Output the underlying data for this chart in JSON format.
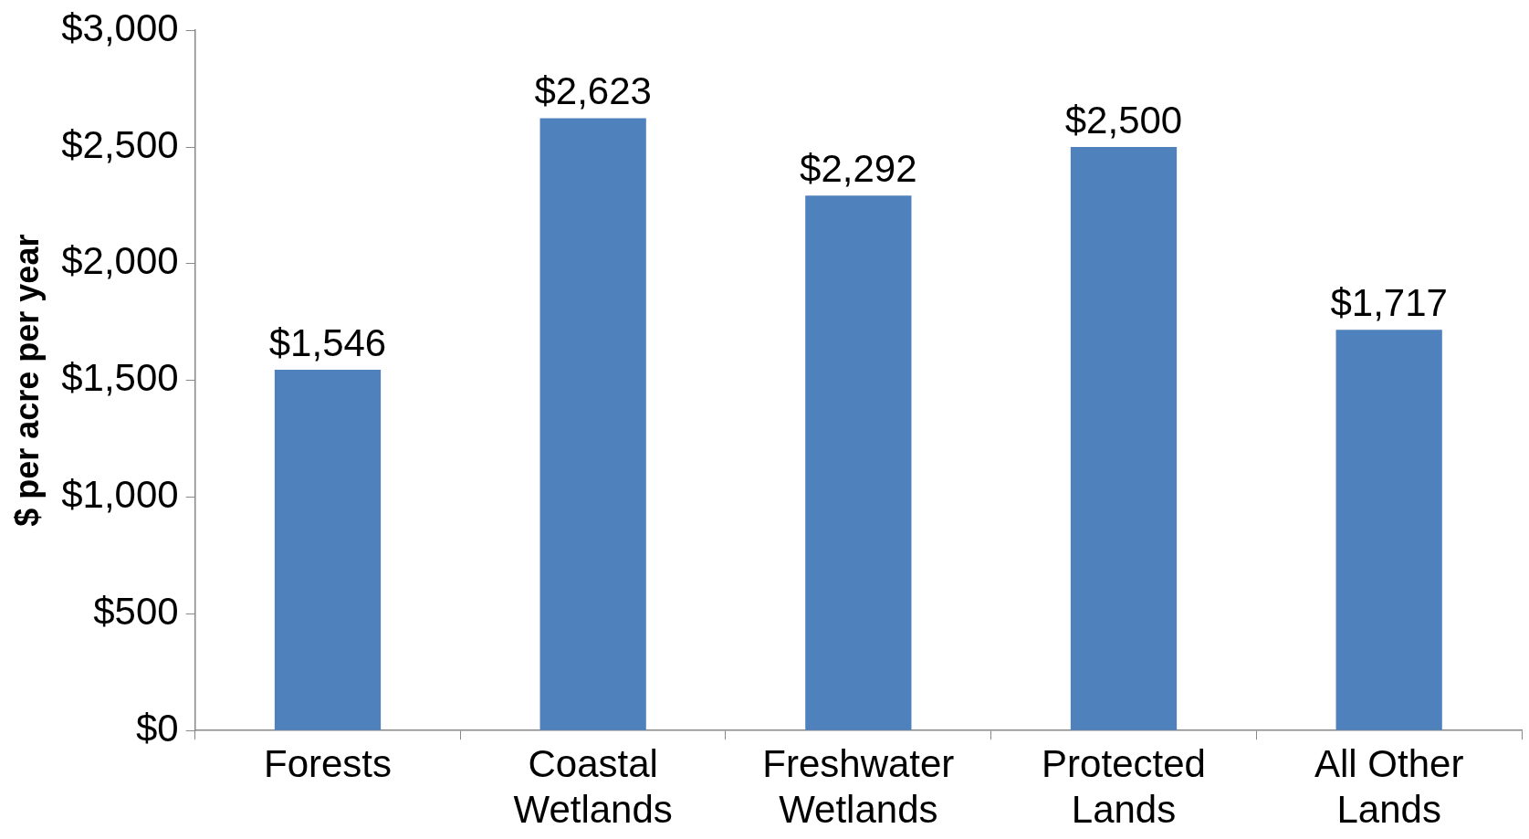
{
  "chart_data": {
    "type": "bar",
    "ylabel": "$ per acre per year",
    "categories": [
      "Forests",
      "Coastal Wetlands",
      "Freshwater Wetlands",
      "Protected Lands",
      "All Other Lands"
    ],
    "values": [
      1546,
      2623,
      2292,
      2500,
      1717
    ],
    "value_labels": [
      "$1,546",
      "$2,623",
      "$2,292",
      "$2,500",
      "$1,717"
    ],
    "color": "#4f81bd",
    "ylim": [
      0,
      3000
    ],
    "yticks": [
      {
        "value": 0,
        "label": "$0"
      },
      {
        "value": 500,
        "label": "$500"
      },
      {
        "value": 1000,
        "label": "$1,000"
      },
      {
        "value": 1500,
        "label": "$1,500"
      },
      {
        "value": 2000,
        "label": "$2,000"
      },
      {
        "value": 2500,
        "label": "$2,500"
      },
      {
        "value": 3000,
        "label": "$3,000"
      }
    ],
    "grid": false,
    "legend": false
  }
}
